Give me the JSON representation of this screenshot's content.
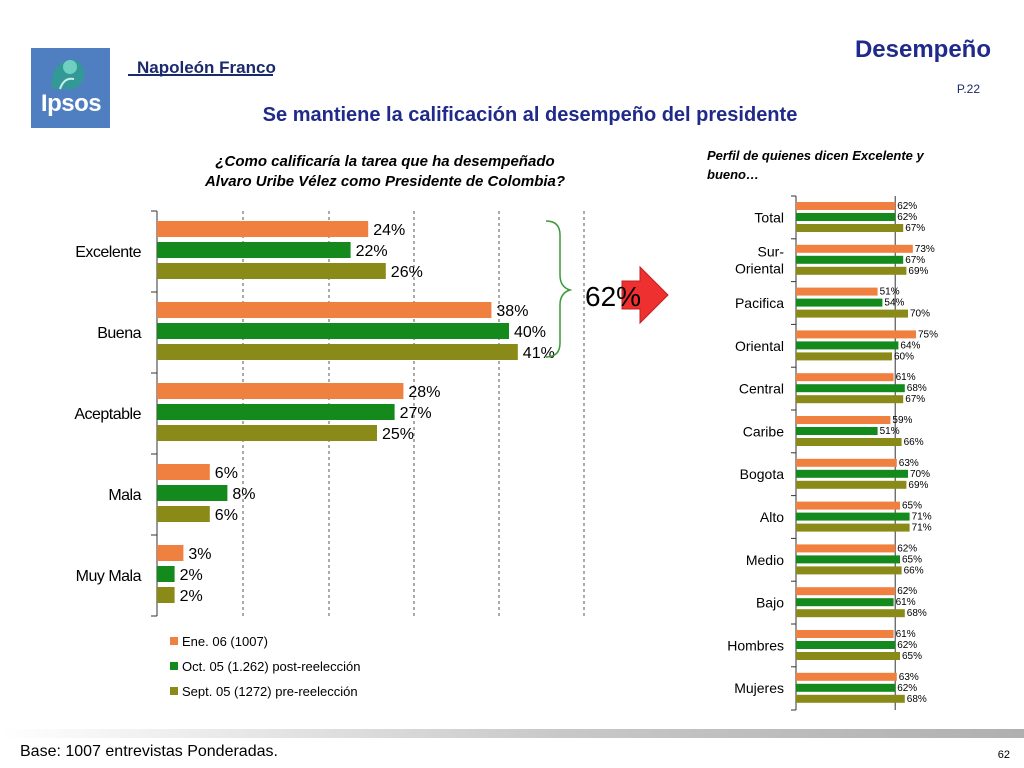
{
  "header": {
    "logo_text": "Ipsos",
    "brand": "Napoleón Franco",
    "section_title": "Desempeño",
    "page_ref": "P.22",
    "subtitle": "Se mantiene la calificación al desempeño del presidente"
  },
  "question_line1": "¿Como calificaría la tarea que ha desempeñado",
  "question_line2": "Alvaro Uribe Vélez como Presidente de Colombia?",
  "profile_title_line1": "Perfil de quienes dicen Excelente y",
  "profile_title_line2": "bueno…",
  "highlight_total": "62%",
  "footer": {
    "base_note": "Base:  1007 entrevistas Ponderadas.",
    "page_number": "62"
  },
  "colors": {
    "series1": "#ef8040",
    "series2": "#158a1c",
    "series3": "#8a8a18",
    "title": "#1f2a8a",
    "arrow": "#ee3030"
  },
  "chart_data": [
    {
      "type": "bar",
      "orientation": "horizontal",
      "categories": [
        "Excelente",
        "Buena",
        "Aceptable",
        "Mala",
        "Muy Mala"
      ],
      "series": [
        {
          "name": "Ene. 06 (1007)",
          "values": [
            24,
            38,
            28,
            6,
            3
          ]
        },
        {
          "name": "Oct. 05 (1.262) post-reelección",
          "values": [
            22,
            40,
            27,
            8,
            2
          ]
        },
        {
          "name": "Sept. 05 (1272) pre-reelección",
          "values": [
            26,
            41,
            25,
            6,
            2
          ]
        }
      ],
      "value_suffix": "%",
      "xlim": [
        0,
        60
      ],
      "grid": "dashed vertical",
      "legend": "bottom"
    },
    {
      "type": "bar",
      "orientation": "horizontal",
      "categories": [
        "Total",
        "Sur-\nOriental",
        "Pacifica",
        "Oriental",
        "Central",
        "Caribe",
        "Bogota",
        "Alto",
        "Medio",
        "Bajo",
        "Hombres",
        "Mujeres"
      ],
      "series": [
        {
          "name": "Ene. 06 (1007)",
          "values": [
            62,
            73,
            51,
            75,
            61,
            59,
            63,
            65,
            62,
            62,
            61,
            63
          ]
        },
        {
          "name": "Oct. 05 (1.262) post-reelección",
          "values": [
            62,
            67,
            54,
            64,
            68,
            51,
            70,
            71,
            65,
            61,
            62,
            62
          ]
        },
        {
          "name": "Sept. 05 (1272) pre-reelección",
          "values": [
            67,
            69,
            70,
            60,
            67,
            66,
            69,
            71,
            66,
            68,
            65,
            68
          ]
        }
      ],
      "value_suffix": "%",
      "xlim": [
        0,
        100
      ],
      "reference_line": 62,
      "legend": "none"
    }
  ]
}
